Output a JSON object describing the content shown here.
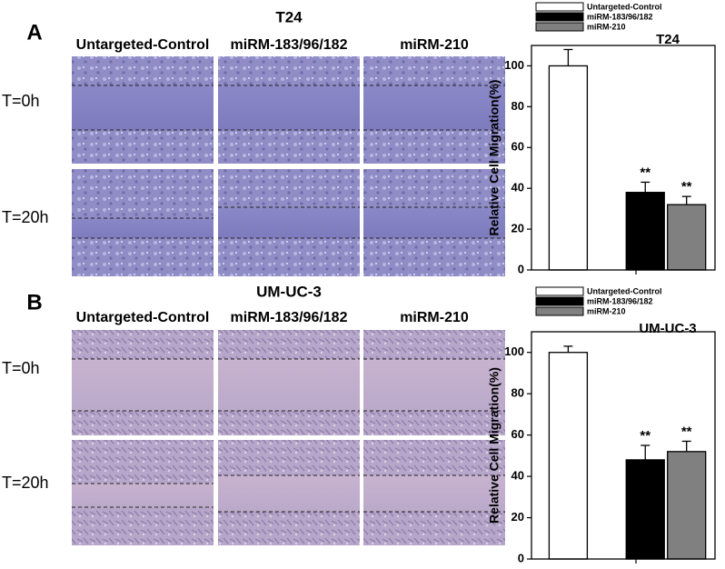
{
  "panels": [
    {
      "label": "A",
      "title": "T24",
      "columns": [
        "Untargeted-Control",
        "miRM-183/96/182",
        "miRM-210"
      ],
      "rows": [
        "T=0h",
        "T=20h"
      ]
    },
    {
      "label": "B",
      "title": "UM-UC-3",
      "columns": [
        "Untargeted-Control",
        "miRM-183/96/182",
        "miRM-210"
      ],
      "rows": [
        "T=0h",
        "T=20h"
      ]
    }
  ],
  "chart_data": [
    {
      "type": "bar",
      "title": "T24",
      "y_label": "Relative Cell Migration(%)",
      "categories": [
        null
      ],
      "series": [
        {
          "name": "Untargeted-Control",
          "color": "#ffffff",
          "values": [
            100
          ],
          "errors": [
            8
          ]
        },
        {
          "name": "miRM-183/96/182",
          "color": "#000000",
          "values": [
            38
          ],
          "errors": [
            5
          ],
          "annotation": "**"
        },
        {
          "name": "miRM-210",
          "color": "#808080",
          "values": [
            32
          ],
          "errors": [
            4
          ],
          "annotation": "**"
        }
      ],
      "ylim": [
        0,
        110
      ],
      "yticks": [
        0,
        20,
        40,
        60,
        80,
        100
      ]
    },
    {
      "type": "bar",
      "title": "UM-UC-3",
      "y_label": "Relative Cell Migration(%)",
      "categories": [
        null
      ],
      "series": [
        {
          "name": "Untargeted-Control",
          "color": "#ffffff",
          "values": [
            100
          ],
          "errors": [
            3
          ]
        },
        {
          "name": "miRM-183/96/182",
          "color": "#000000",
          "values": [
            48
          ],
          "errors": [
            7
          ],
          "annotation": "**"
        },
        {
          "name": "miRM-210",
          "color": "#808080",
          "values": [
            52
          ],
          "errors": [
            5
          ],
          "annotation": "**"
        }
      ],
      "ylim": [
        0,
        110
      ],
      "yticks": [
        0,
        20,
        40,
        60,
        80,
        100
      ]
    }
  ]
}
